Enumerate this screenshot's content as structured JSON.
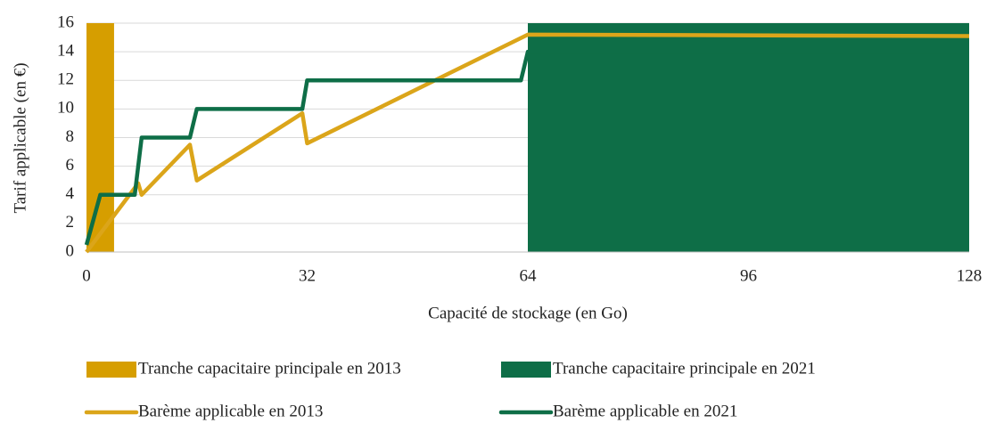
{
  "chart_data": {
    "type": "line",
    "x_label": "Capacité de stockage (en Go)",
    "y_label": "Tarif applicable (en €)",
    "xlim": [
      0,
      128
    ],
    "xticks": [
      0,
      32,
      64,
      96,
      128
    ],
    "ylim": [
      0,
      16
    ],
    "yticks": [
      0,
      2,
      4,
      6,
      8,
      10,
      12,
      14,
      16
    ],
    "grid": true,
    "bands": [
      {
        "name": "Tranche capacitaire principale en 2013",
        "color": "#d69e00",
        "x": [
          0,
          4
        ]
      },
      {
        "name": "Tranche capacitaire principale en 2021",
        "color": "#0e6e47",
        "x": [
          64,
          128
        ]
      }
    ],
    "series": [
      {
        "name": "Barème applicable en 2013",
        "color": "#dba51a",
        "x": [
          0,
          7.5,
          8,
          15,
          16,
          31.3,
          32,
          64,
          128
        ],
        "values": [
          0,
          4.8,
          4,
          7.5,
          5,
          9.7,
          7.6,
          15.2,
          15.1
        ]
      },
      {
        "name": "Barème applicable en 2021",
        "color": "#0e6e47",
        "x": [
          0,
          2,
          7,
          8,
          15,
          16,
          31.3,
          32,
          63,
          64,
          128
        ],
        "values": [
          0.5,
          4,
          4,
          8,
          8,
          10,
          10,
          12,
          12,
          14,
          14
        ]
      }
    ]
  }
}
